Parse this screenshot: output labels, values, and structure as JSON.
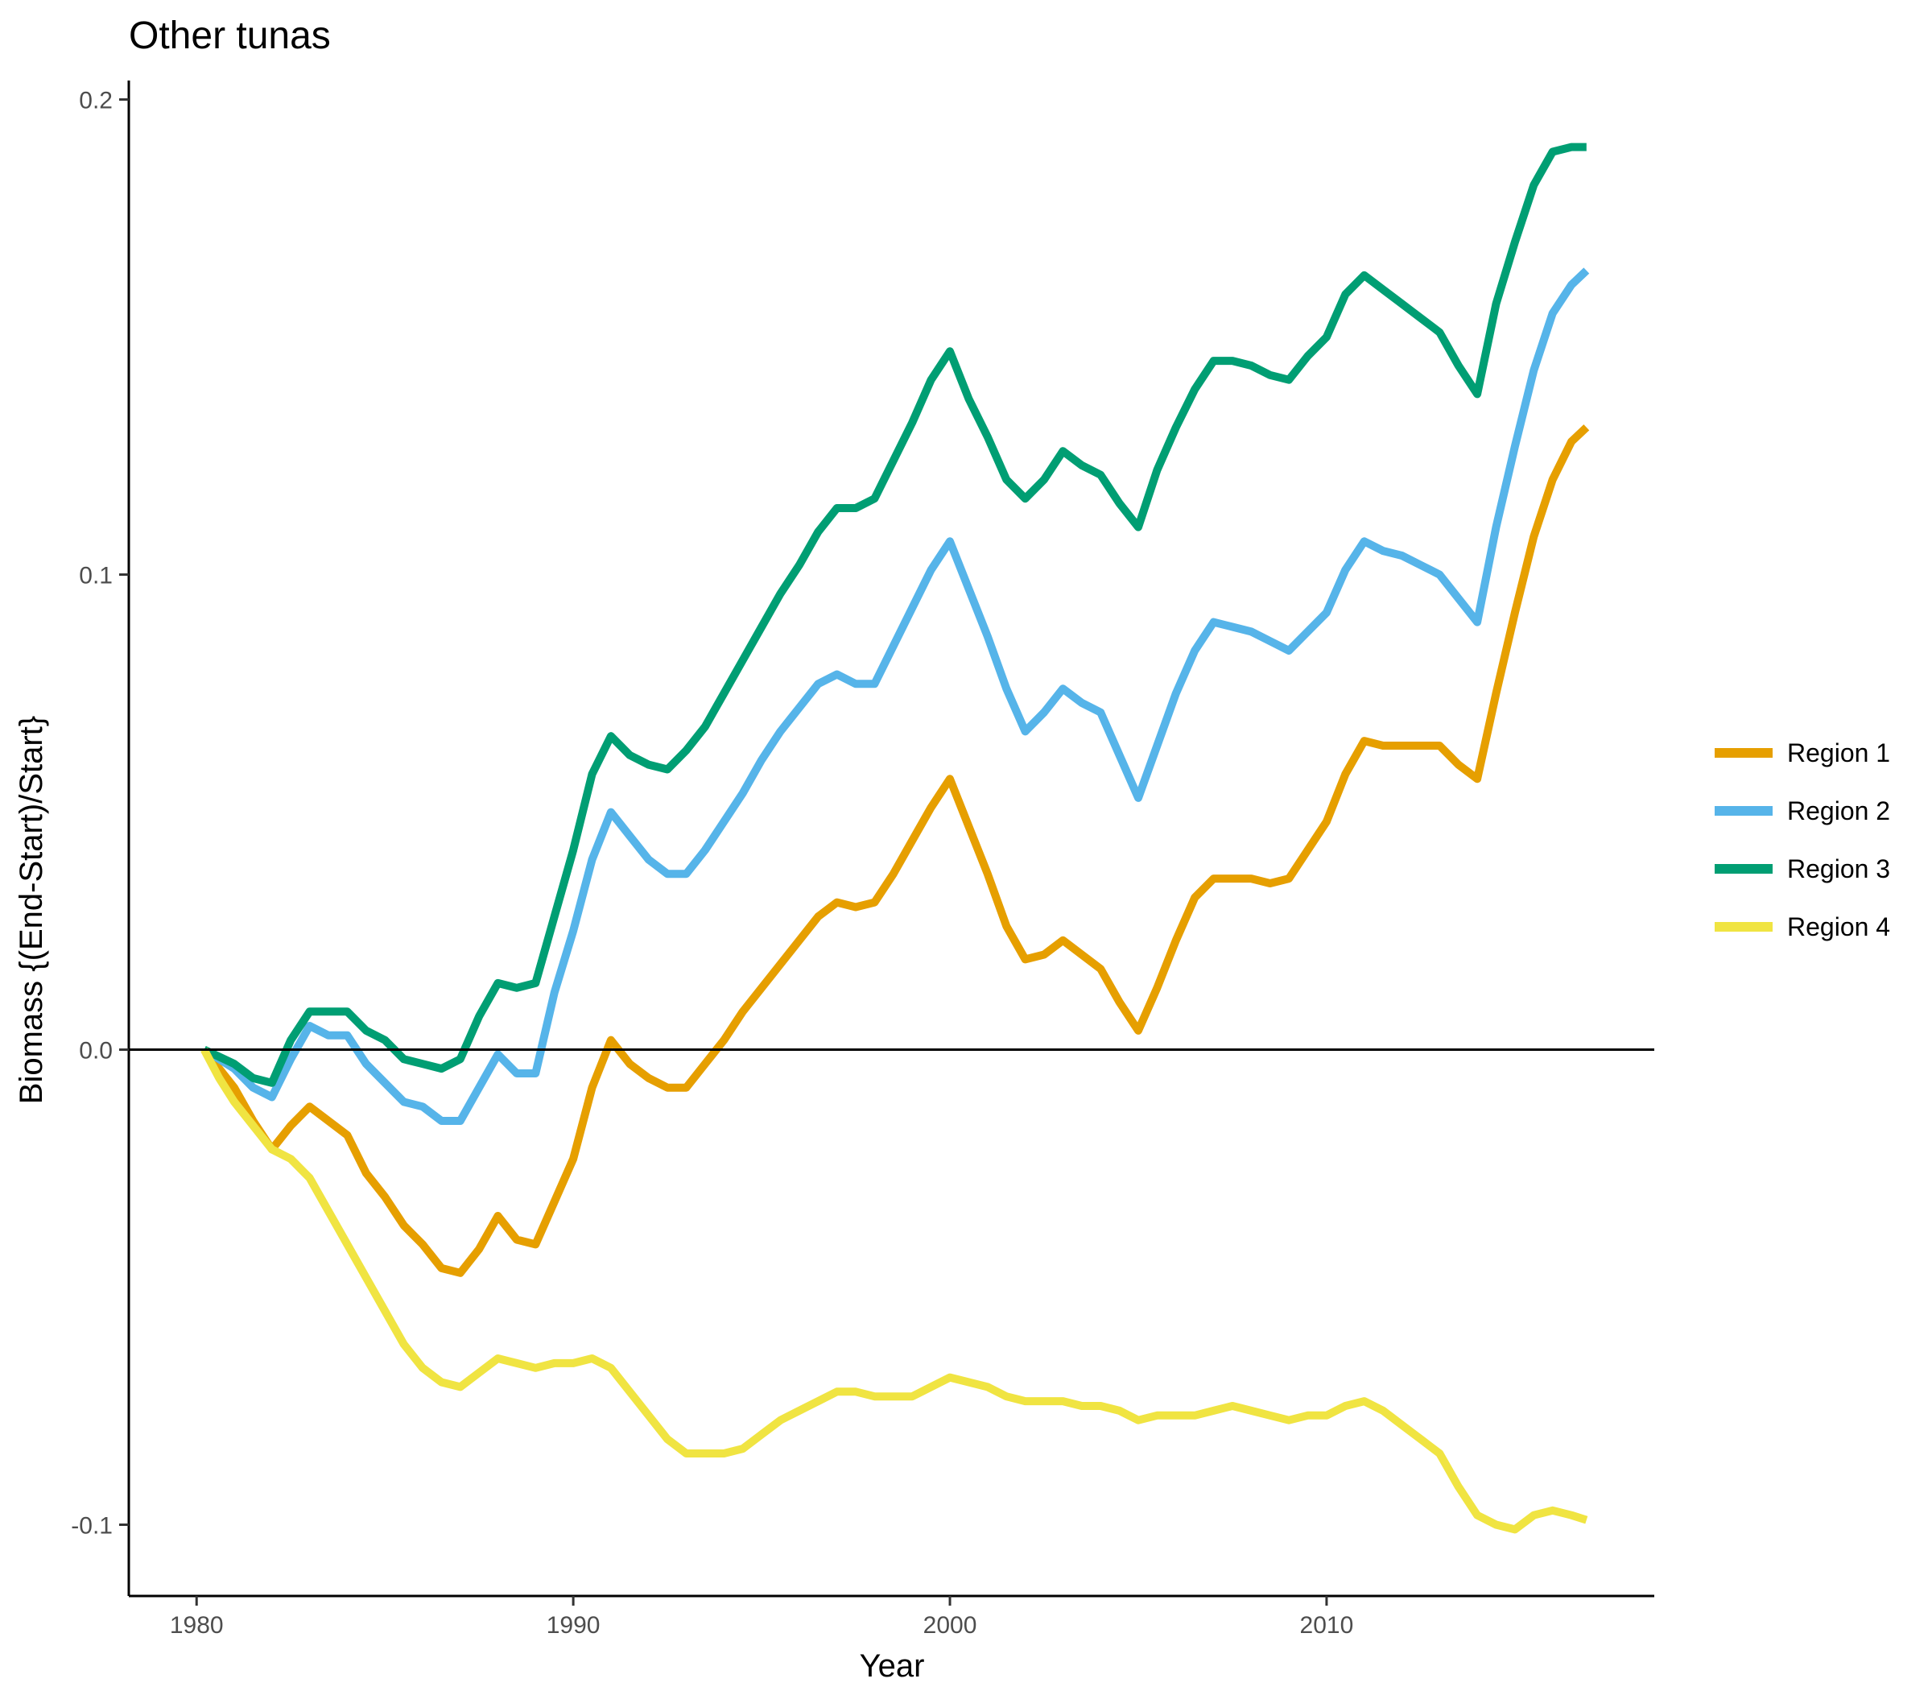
{
  "chart_data": {
    "type": "line",
    "title": "Other tunas",
    "xlabel": "Year",
    "ylabel": "Biomass {(End-Start)/Start}",
    "xlim": [
      1978.2,
      2018.7
    ],
    "ylim": [
      -0.115,
      0.204
    ],
    "x_ticks": [
      {
        "value": 1980,
        "label": "1980"
      },
      {
        "value": 1990,
        "label": "1990"
      },
      {
        "value": 2000,
        "label": "2000"
      },
      {
        "value": 2010,
        "label": "2010"
      }
    ],
    "y_ticks": [
      {
        "value": -0.1,
        "label": "-0.1"
      },
      {
        "value": 0.0,
        "label": "0.0"
      },
      {
        "value": 0.1,
        "label": "0.1"
      },
      {
        "value": 0.2,
        "label": "0.2"
      }
    ],
    "reference_line_y": 0,
    "grid": false,
    "legend_position": "right",
    "series": [
      {
        "name": "Region 1",
        "color": "#E69F00",
        "points": [
          [
            1980.2,
            0.0
          ],
          [
            1981,
            -0.008
          ],
          [
            1981.5,
            -0.015
          ],
          [
            1982,
            -0.021
          ],
          [
            1982.5,
            -0.016
          ],
          [
            1983,
            -0.012
          ],
          [
            1983.5,
            -0.015
          ],
          [
            1984,
            -0.018
          ],
          [
            1984.5,
            -0.026
          ],
          [
            1985,
            -0.031
          ],
          [
            1985.5,
            -0.037
          ],
          [
            1986,
            -0.041
          ],
          [
            1986.5,
            -0.046
          ],
          [
            1987,
            -0.047
          ],
          [
            1987.5,
            -0.042
          ],
          [
            1988,
            -0.035
          ],
          [
            1988.5,
            -0.04
          ],
          [
            1989,
            -0.041
          ],
          [
            1989.5,
            -0.032
          ],
          [
            1990,
            -0.023
          ],
          [
            1990.5,
            -0.008
          ],
          [
            1991,
            0.002
          ],
          [
            1991.5,
            -0.003
          ],
          [
            1992,
            -0.006
          ],
          [
            1992.5,
            -0.008
          ],
          [
            1993,
            -0.008
          ],
          [
            1993.5,
            -0.003
          ],
          [
            1994,
            0.002
          ],
          [
            1994.5,
            0.008
          ],
          [
            1995,
            0.013
          ],
          [
            1995.5,
            0.018
          ],
          [
            1996,
            0.023
          ],
          [
            1996.5,
            0.028
          ],
          [
            1997,
            0.031
          ],
          [
            1997.5,
            0.03
          ],
          [
            1998,
            0.031
          ],
          [
            1998.5,
            0.037
          ],
          [
            1999,
            0.044
          ],
          [
            1999.5,
            0.051
          ],
          [
            2000,
            0.057
          ],
          [
            2000.5,
            0.047
          ],
          [
            2001,
            0.037
          ],
          [
            2001.5,
            0.026
          ],
          [
            2002,
            0.019
          ],
          [
            2002.5,
            0.02
          ],
          [
            2003,
            0.023
          ],
          [
            2003.5,
            0.02
          ],
          [
            2004,
            0.017
          ],
          [
            2004.5,
            0.01
          ],
          [
            2005,
            0.004
          ],
          [
            2005.5,
            0.013
          ],
          [
            2006,
            0.023
          ],
          [
            2006.5,
            0.032
          ],
          [
            2007,
            0.036
          ],
          [
            2007.5,
            0.036
          ],
          [
            2008,
            0.036
          ],
          [
            2008.5,
            0.035
          ],
          [
            2009,
            0.036
          ],
          [
            2009.5,
            0.042
          ],
          [
            2010,
            0.048
          ],
          [
            2010.5,
            0.058
          ],
          [
            2011,
            0.065
          ],
          [
            2011.5,
            0.064
          ],
          [
            2012,
            0.064
          ],
          [
            2012.5,
            0.064
          ],
          [
            2013,
            0.064
          ],
          [
            2013.5,
            0.06
          ],
          [
            2014,
            0.057
          ],
          [
            2014.5,
            0.075
          ],
          [
            2015,
            0.092
          ],
          [
            2015.5,
            0.108
          ],
          [
            2016,
            0.12
          ],
          [
            2016.5,
            0.128
          ],
          [
            2016.9,
            0.131
          ]
        ]
      },
      {
        "name": "Region 2",
        "color": "#56B4E9",
        "points": [
          [
            1980.2,
            0.0
          ],
          [
            1981,
            -0.004
          ],
          [
            1981.5,
            -0.008
          ],
          [
            1982,
            -0.01
          ],
          [
            1982.5,
            -0.002
          ],
          [
            1983,
            0.005
          ],
          [
            1983.5,
            0.003
          ],
          [
            1984,
            0.003
          ],
          [
            1984.5,
            -0.003
          ],
          [
            1985,
            -0.007
          ],
          [
            1985.5,
            -0.011
          ],
          [
            1986,
            -0.012
          ],
          [
            1986.5,
            -0.015
          ],
          [
            1987,
            -0.015
          ],
          [
            1987.5,
            -0.008
          ],
          [
            1988,
            -0.001
          ],
          [
            1988.5,
            -0.005
          ],
          [
            1989,
            -0.005
          ],
          [
            1989.5,
            0.012
          ],
          [
            1990,
            0.025
          ],
          [
            1990.5,
            0.04
          ],
          [
            1991,
            0.05
          ],
          [
            1991.5,
            0.045
          ],
          [
            1992,
            0.04
          ],
          [
            1992.5,
            0.037
          ],
          [
            1993,
            0.037
          ],
          [
            1993.5,
            0.042
          ],
          [
            1994,
            0.048
          ],
          [
            1994.5,
            0.054
          ],
          [
            1995,
            0.061
          ],
          [
            1995.5,
            0.067
          ],
          [
            1996,
            0.072
          ],
          [
            1996.5,
            0.077
          ],
          [
            1997,
            0.079
          ],
          [
            1997.5,
            0.077
          ],
          [
            1998,
            0.077
          ],
          [
            1998.5,
            0.085
          ],
          [
            1999,
            0.093
          ],
          [
            1999.5,
            0.101
          ],
          [
            2000,
            0.107
          ],
          [
            2000.5,
            0.097
          ],
          [
            2001,
            0.087
          ],
          [
            2001.5,
            0.076
          ],
          [
            2002,
            0.067
          ],
          [
            2002.5,
            0.071
          ],
          [
            2003,
            0.076
          ],
          [
            2003.5,
            0.073
          ],
          [
            2004,
            0.071
          ],
          [
            2004.5,
            0.062
          ],
          [
            2005,
            0.053
          ],
          [
            2005.5,
            0.064
          ],
          [
            2006,
            0.075
          ],
          [
            2006.5,
            0.084
          ],
          [
            2007,
            0.09
          ],
          [
            2007.5,
            0.089
          ],
          [
            2008,
            0.088
          ],
          [
            2008.5,
            0.086
          ],
          [
            2009,
            0.084
          ],
          [
            2009.5,
            0.088
          ],
          [
            2010,
            0.092
          ],
          [
            2010.5,
            0.101
          ],
          [
            2011,
            0.107
          ],
          [
            2011.5,
            0.105
          ],
          [
            2012,
            0.104
          ],
          [
            2012.5,
            0.102
          ],
          [
            2013,
            0.1
          ],
          [
            2013.5,
            0.095
          ],
          [
            2014,
            0.09
          ],
          [
            2014.5,
            0.11
          ],
          [
            2015,
            0.127
          ],
          [
            2015.5,
            0.143
          ],
          [
            2016,
            0.155
          ],
          [
            2016.5,
            0.161
          ],
          [
            2016.9,
            0.164
          ]
        ]
      },
      {
        "name": "Region 3",
        "color": "#009E73",
        "points": [
          [
            1980.2,
            0.0
          ],
          [
            1981,
            -0.003
          ],
          [
            1981.5,
            -0.006
          ],
          [
            1982,
            -0.007
          ],
          [
            1982.5,
            0.002
          ],
          [
            1983,
            0.008
          ],
          [
            1983.5,
            0.008
          ],
          [
            1984,
            0.008
          ],
          [
            1984.5,
            0.004
          ],
          [
            1985,
            0.002
          ],
          [
            1985.5,
            -0.002
          ],
          [
            1986,
            -0.003
          ],
          [
            1986.5,
            -0.004
          ],
          [
            1987,
            -0.002
          ],
          [
            1987.5,
            0.007
          ],
          [
            1988,
            0.014
          ],
          [
            1988.5,
            0.013
          ],
          [
            1989,
            0.014
          ],
          [
            1989.5,
            0.028
          ],
          [
            1990,
            0.042
          ],
          [
            1990.5,
            0.058
          ],
          [
            1991,
            0.066
          ],
          [
            1991.5,
            0.062
          ],
          [
            1992,
            0.06
          ],
          [
            1992.5,
            0.059
          ],
          [
            1993,
            0.063
          ],
          [
            1993.5,
            0.068
          ],
          [
            1994,
            0.075
          ],
          [
            1994.5,
            0.082
          ],
          [
            1995,
            0.089
          ],
          [
            1995.5,
            0.096
          ],
          [
            1996,
            0.102
          ],
          [
            1996.5,
            0.109
          ],
          [
            1997,
            0.114
          ],
          [
            1997.5,
            0.114
          ],
          [
            1998,
            0.116
          ],
          [
            1998.5,
            0.124
          ],
          [
            1999,
            0.132
          ],
          [
            1999.5,
            0.141
          ],
          [
            2000,
            0.147
          ],
          [
            2000.5,
            0.137
          ],
          [
            2001,
            0.129
          ],
          [
            2001.5,
            0.12
          ],
          [
            2002,
            0.116
          ],
          [
            2002.5,
            0.12
          ],
          [
            2003,
            0.126
          ],
          [
            2003.5,
            0.123
          ],
          [
            2004,
            0.121
          ],
          [
            2004.5,
            0.115
          ],
          [
            2005,
            0.11
          ],
          [
            2005.5,
            0.122
          ],
          [
            2006,
            0.131
          ],
          [
            2006.5,
            0.139
          ],
          [
            2007,
            0.145
          ],
          [
            2007.5,
            0.145
          ],
          [
            2008,
            0.144
          ],
          [
            2008.5,
            0.142
          ],
          [
            2009,
            0.141
          ],
          [
            2009.5,
            0.146
          ],
          [
            2010,
            0.15
          ],
          [
            2010.5,
            0.159
          ],
          [
            2011,
            0.163
          ],
          [
            2011.5,
            0.16
          ],
          [
            2012,
            0.157
          ],
          [
            2012.5,
            0.154
          ],
          [
            2013,
            0.151
          ],
          [
            2013.5,
            0.144
          ],
          [
            2014,
            0.138
          ],
          [
            2014.5,
            0.157
          ],
          [
            2015,
            0.17
          ],
          [
            2015.5,
            0.182
          ],
          [
            2016,
            0.189
          ],
          [
            2016.5,
            0.19
          ],
          [
            2016.9,
            0.19
          ]
        ]
      },
      {
        "name": "Region 4",
        "color": "#F0E442",
        "points": [
          [
            1980.2,
            0.0
          ],
          [
            1980.6,
            -0.006
          ],
          [
            1981,
            -0.011
          ],
          [
            1981.5,
            -0.016
          ],
          [
            1982,
            -0.021
          ],
          [
            1982.5,
            -0.023
          ],
          [
            1983,
            -0.027
          ],
          [
            1983.5,
            -0.034
          ],
          [
            1984,
            -0.041
          ],
          [
            1984.5,
            -0.048
          ],
          [
            1985,
            -0.055
          ],
          [
            1985.5,
            -0.062
          ],
          [
            1986,
            -0.067
          ],
          [
            1986.5,
            -0.07
          ],
          [
            1987,
            -0.071
          ],
          [
            1987.5,
            -0.068
          ],
          [
            1988,
            -0.065
          ],
          [
            1988.5,
            -0.066
          ],
          [
            1989,
            -0.067
          ],
          [
            1989.5,
            -0.066
          ],
          [
            1990,
            -0.066
          ],
          [
            1990.5,
            -0.065
          ],
          [
            1991,
            -0.067
          ],
          [
            1991.5,
            -0.072
          ],
          [
            1992,
            -0.077
          ],
          [
            1992.5,
            -0.082
          ],
          [
            1993,
            -0.085
          ],
          [
            1993.5,
            -0.085
          ],
          [
            1994,
            -0.085
          ],
          [
            1994.5,
            -0.084
          ],
          [
            1995,
            -0.081
          ],
          [
            1995.5,
            -0.078
          ],
          [
            1996,
            -0.076
          ],
          [
            1996.5,
            -0.074
          ],
          [
            1997,
            -0.072
          ],
          [
            1997.5,
            -0.072
          ],
          [
            1998,
            -0.073
          ],
          [
            1998.5,
            -0.073
          ],
          [
            1999,
            -0.073
          ],
          [
            1999.5,
            -0.071
          ],
          [
            2000,
            -0.069
          ],
          [
            2000.5,
            -0.07
          ],
          [
            2001,
            -0.071
          ],
          [
            2001.5,
            -0.073
          ],
          [
            2002,
            -0.074
          ],
          [
            2002.5,
            -0.074
          ],
          [
            2003,
            -0.074
          ],
          [
            2003.5,
            -0.075
          ],
          [
            2004,
            -0.075
          ],
          [
            2004.5,
            -0.076
          ],
          [
            2005,
            -0.078
          ],
          [
            2005.5,
            -0.077
          ],
          [
            2006,
            -0.077
          ],
          [
            2006.5,
            -0.077
          ],
          [
            2007,
            -0.076
          ],
          [
            2007.5,
            -0.075
          ],
          [
            2008,
            -0.076
          ],
          [
            2008.5,
            -0.077
          ],
          [
            2009,
            -0.078
          ],
          [
            2009.5,
            -0.077
          ],
          [
            2010,
            -0.077
          ],
          [
            2010.5,
            -0.075
          ],
          [
            2011,
            -0.074
          ],
          [
            2011.5,
            -0.076
          ],
          [
            2012,
            -0.079
          ],
          [
            2012.5,
            -0.082
          ],
          [
            2013,
            -0.085
          ],
          [
            2013.5,
            -0.092
          ],
          [
            2014,
            -0.098
          ],
          [
            2014.5,
            -0.1
          ],
          [
            2015,
            -0.101
          ],
          [
            2015.5,
            -0.098
          ],
          [
            2016,
            -0.097
          ],
          [
            2016.5,
            -0.098
          ],
          [
            2016.9,
            -0.099
          ]
        ]
      }
    ]
  }
}
